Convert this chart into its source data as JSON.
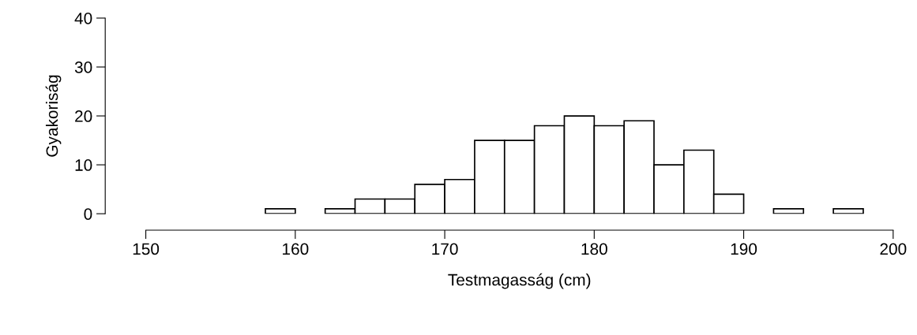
{
  "chart_data": {
    "type": "histogram",
    "xlabel": "Testmagasság (cm)",
    "ylabel": "Gyakoriság",
    "bins": [
      158,
      160,
      162,
      164,
      166,
      168,
      170,
      172,
      174,
      176,
      178,
      180,
      182,
      184,
      186,
      188,
      190,
      192,
      194,
      196,
      198
    ],
    "values": [
      1,
      0,
      1,
      3,
      3,
      6,
      7,
      15,
      15,
      18,
      20,
      18,
      19,
      10,
      13,
      4,
      0,
      1,
      0,
      1
    ],
    "color": "#ffffff",
    "xlim": [
      150,
      200
    ],
    "xticks": [
      150,
      160,
      170,
      180,
      190,
      200
    ],
    "ylim": [
      0,
      40
    ],
    "yticks": [
      0,
      10,
      20,
      30,
      40
    ],
    "grid": false
  }
}
